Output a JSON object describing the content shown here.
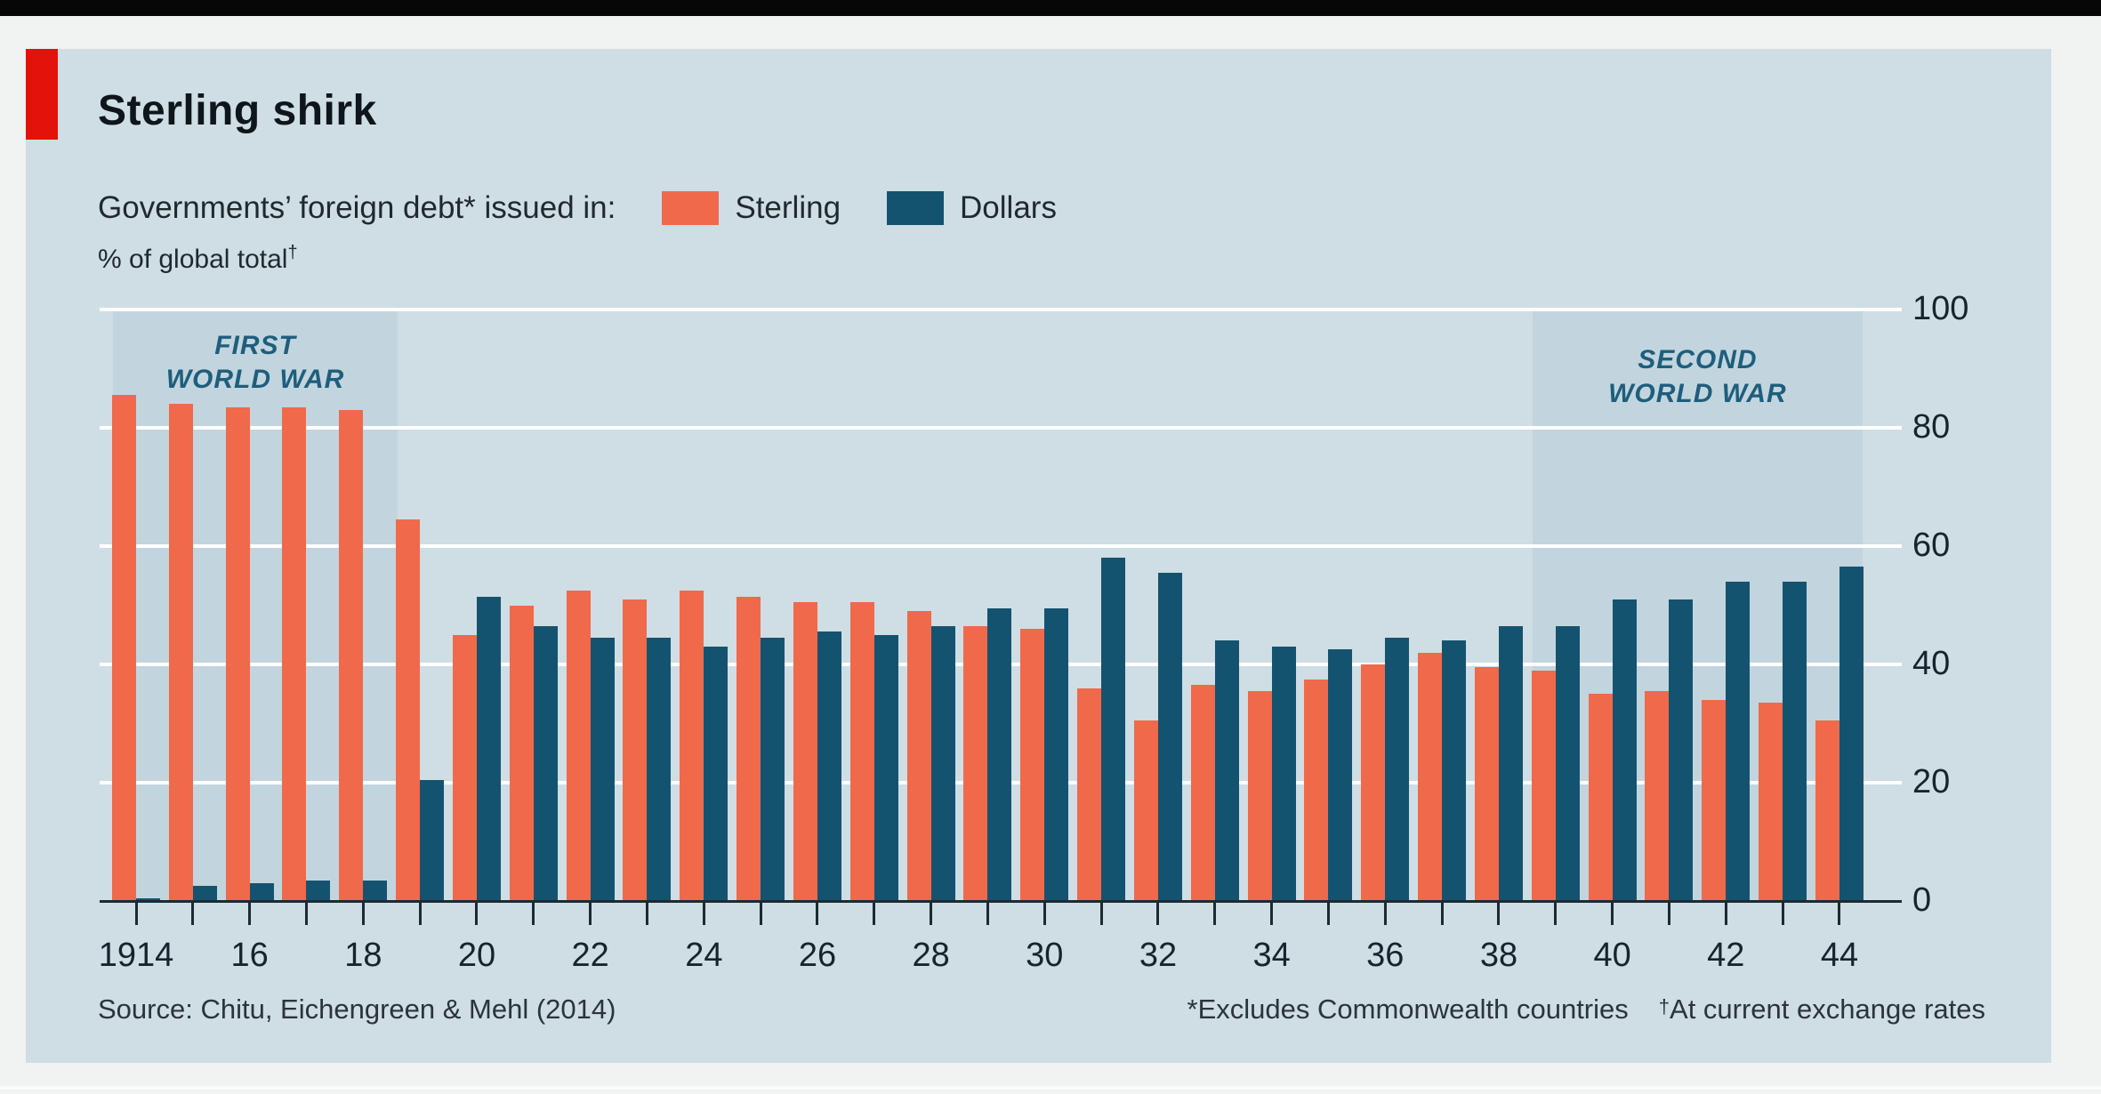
{
  "header": {
    "title": "Sterling shirk",
    "subtitle": "Governments’ foreign debt* issued in:",
    "unit_label": "% of global total",
    "unit_dagger": "†"
  },
  "legend": {
    "sterling_label": "Sterling",
    "dollars_label": "Dollars"
  },
  "footer": {
    "source": "Source: Chitu, Eichengreen & Mehl (2014)",
    "note1": "*Excludes Commonwealth countries",
    "note2_dagger": "†",
    "note2": "At current exchange rates"
  },
  "colors": {
    "sterling": "#f0694b",
    "dollars": "#14536f",
    "panel_bg": "#cfdde4",
    "war_band": "#c2d5de",
    "accent_red": "#e3120b",
    "gridline": "#ffffff",
    "axis": "#1c2b33",
    "war_label": "#1e5e7d"
  },
  "chart_data": {
    "type": "bar",
    "title": "Sterling shirk",
    "subtitle": "Governments’ foreign debt* issued in: Sterling / Dollars",
    "ylabel": "% of global total",
    "ylim": [
      0,
      100
    ],
    "yticks": [
      0,
      20,
      40,
      60,
      80,
      100
    ],
    "grid": "horizontal white gridlines on",
    "legend_position": "top",
    "categories": [
      1914,
      1915,
      1916,
      1917,
      1918,
      1919,
      1920,
      1921,
      1922,
      1923,
      1924,
      1925,
      1926,
      1927,
      1928,
      1929,
      1930,
      1931,
      1932,
      1933,
      1934,
      1935,
      1936,
      1937,
      1938,
      1939,
      1940,
      1941,
      1942,
      1943,
      1944
    ],
    "series": [
      {
        "name": "Sterling",
        "values": [
          85.5,
          84,
          83.5,
          83.5,
          83,
          64.5,
          45,
          50,
          52.5,
          51,
          52.5,
          51.5,
          50.5,
          50.5,
          49,
          46.5,
          46,
          36,
          30.5,
          36.5,
          35.5,
          37.5,
          40,
          42,
          39.5,
          39,
          35,
          35.5,
          34,
          33.5,
          30.5
        ]
      },
      {
        "name": "Dollars",
        "values": [
          0.5,
          2.5,
          3,
          3.5,
          3.5,
          20.5,
          51.5,
          46.5,
          44.5,
          44.5,
          43,
          44.5,
          45.5,
          45,
          46.5,
          49.5,
          49.5,
          58,
          55.5,
          44,
          43,
          42.5,
          44.5,
          44,
          46.5,
          46.5,
          51,
          51,
          54,
          54,
          56.5
        ]
      }
    ],
    "xtick_labeled_years": [
      1914,
      1916,
      1918,
      1920,
      1922,
      1924,
      1926,
      1928,
      1930,
      1932,
      1934,
      1936,
      1938,
      1940,
      1942,
      1944
    ],
    "xtick_labels": [
      "1914",
      "16",
      "18",
      "20",
      "22",
      "24",
      "26",
      "28",
      "30",
      "32",
      "34",
      "36",
      "38",
      "40",
      "42",
      "44"
    ],
    "shaded_regions": [
      {
        "label_line1": "FIRST",
        "label_line2": "WORLD WAR",
        "from_year": 1913.6,
        "to_year": 1918.6
      },
      {
        "label_line1": "SECOND",
        "label_line2": "WORLD WAR",
        "from_year": 1938.6,
        "to_year": 1944.4
      }
    ]
  }
}
